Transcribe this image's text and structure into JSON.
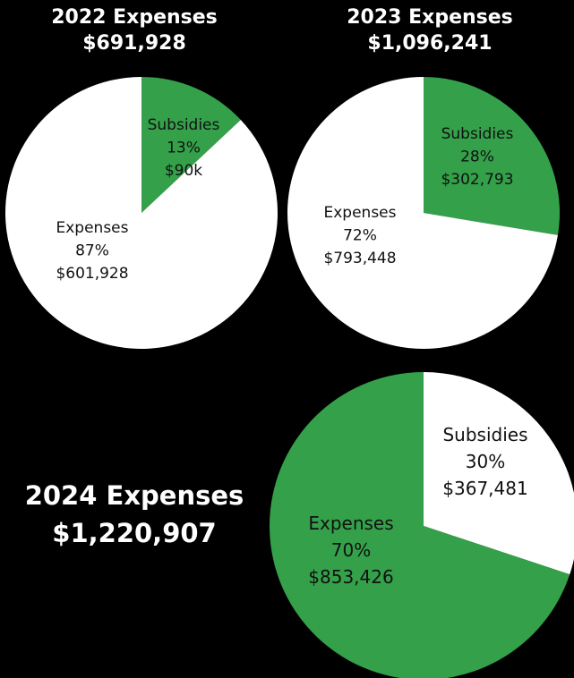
{
  "colors": {
    "green": "#34a04a",
    "white": "#ffffff",
    "background": "#000000",
    "text": "#111111"
  },
  "chart_data": [
    {
      "type": "pie",
      "title": "2022 Expenses",
      "subtitle": "$691,928",
      "slices": [
        {
          "label": "Subsidies",
          "percent": "13%",
          "amount": "$90k",
          "value": 90000,
          "color": "#34a04a"
        },
        {
          "label": "Expenses",
          "percent": "87%",
          "amount": "$601,928",
          "value": 601928,
          "color": "#ffffff"
        }
      ]
    },
    {
      "type": "pie",
      "title": "2023 Expenses",
      "subtitle": "$1,096,241",
      "slices": [
        {
          "label": "Subsidies",
          "percent": "28%",
          "amount": "$302,793",
          "value": 302793,
          "color": "#34a04a"
        },
        {
          "label": "Expenses",
          "percent": "72%",
          "amount": "$793,448",
          "value": 793448,
          "color": "#ffffff"
        }
      ]
    },
    {
      "type": "pie",
      "title": "2024 Expenses",
      "subtitle": "$1,220,907",
      "slices": [
        {
          "label": "Subsidies",
          "percent": "30%",
          "amount": "$367,481",
          "value": 367481,
          "color": "#ffffff"
        },
        {
          "label": "Expenses",
          "percent": "70%",
          "amount": "$853,426",
          "value": 853426,
          "color": "#34a04a"
        }
      ]
    }
  ]
}
